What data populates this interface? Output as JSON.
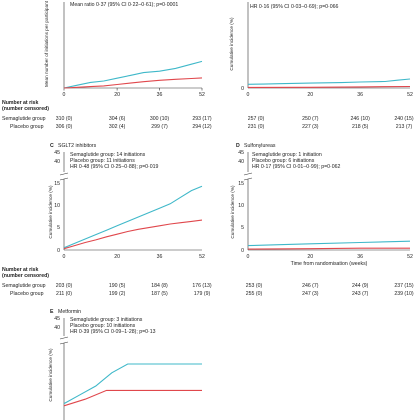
{
  "colors": {
    "semaglutide": "#3fb8c9",
    "placebo": "#e0474c",
    "axis": "#333333"
  },
  "shared": {
    "number_at_risk": "Number at risk",
    "number_censored": "(number censored)",
    "sema_group": "Semaglutide group",
    "placebo_group": "Placebo group",
    "cumulative_incidence_label": "Cumulative incidence (%)"
  },
  "panels": {
    "A": {
      "annotation": "Mean ratio 0·37 (95% CI 0·22–0·61); p=0·0001",
      "ylabel": "Mean number of initiations per participant",
      "xticks": [
        "0",
        "20",
        "36",
        "52"
      ],
      "risk_sema": [
        "310 (0)",
        "304 (6)",
        "300 (10)",
        "293 (17)"
      ],
      "risk_placebo": [
        "306 (0)",
        "302 (4)",
        "299 (7)",
        "294 (12)"
      ]
    },
    "B": {
      "hr": "HR 0·16 (95% CI 0·03–0·69); p=0·066",
      "yticks": [
        "0"
      ],
      "xticks": [
        "0",
        "20",
        "36",
        "52"
      ],
      "risk_sema": [
        "257 (0)",
        "250 (7)",
        "246 (10)",
        "240 (15)"
      ],
      "risk_placebo": [
        "231 (0)",
        "227 (3)",
        "218 (5)",
        "213 (7)"
      ]
    },
    "C": {
      "title": "SGLT2 inhibitors",
      "letter": "C",
      "sema_line": "Semaglutide group: 14 initiations",
      "placebo_line": "Placebo group: 11 initiations",
      "hr": "HR 0·48 (95% CI 0·25–0·88); p=0·019",
      "yticks": [
        "0",
        "5",
        "10",
        "15",
        "40",
        "45"
      ],
      "xticks": [
        "0",
        "20",
        "36",
        "52"
      ],
      "risk_sema": [
        "203 (0)",
        "190 (5)",
        "184 (8)",
        "176 (13)"
      ],
      "risk_placebo": [
        "211 (0)",
        "199 (2)",
        "187 (5)",
        "179 (9)"
      ]
    },
    "D": {
      "title": "Sulfonylureas",
      "letter": "D",
      "sema_line": "Semaglutide group: 1 initiation",
      "placebo_line": "Placebo group: 6 initiations",
      "hr": "HR 0·17 (95% CI 0·01–0·99); p=0·062",
      "yticks": [
        "0",
        "5",
        "10",
        "15",
        "40",
        "45"
      ],
      "xticks": [
        "0",
        "20",
        "36",
        "52"
      ],
      "xlabel": "Time from randomisation (weeks)",
      "risk_sema": [
        "253 (0)",
        "246 (7)",
        "244 (9)",
        "237 (15)"
      ],
      "risk_placebo": [
        "255 (0)",
        "247 (3)",
        "243 (7)",
        "239 (10)"
      ]
    },
    "E": {
      "title": "Metformin",
      "letter": "E",
      "sema_line": "Semaglutide group: 3 initiations",
      "placebo_line": "Placebo group: 10 initiations",
      "hr": "HR 0·39 (95% CI 0·09–1·28); p=0·13",
      "yticks": [
        "40",
        "45"
      ]
    }
  },
  "chart_data": [
    {
      "panel": "A",
      "type": "line",
      "ylabel": "Mean number of initiations per participant",
      "xlim": [
        0,
        52
      ],
      "ylim": [
        0,
        0.6
      ],
      "series": [
        {
          "name": "Semaglutide group",
          "x": [
            0,
            5,
            10,
            15,
            20,
            25,
            30,
            36,
            42,
            48,
            52
          ],
          "y": [
            0.0,
            0.02,
            0.04,
            0.05,
            0.07,
            0.09,
            0.11,
            0.12,
            0.14,
            0.17,
            0.19
          ]
        },
        {
          "name": "Placebo group",
          "x": [
            0,
            5,
            10,
            15,
            20,
            25,
            30,
            36,
            42,
            48,
            52
          ],
          "y": [
            0.0,
            0.005,
            0.01,
            0.015,
            0.025,
            0.035,
            0.045,
            0.055,
            0.062,
            0.068,
            0.072
          ]
        }
      ]
    },
    {
      "panel": "B",
      "type": "line",
      "ylabel": "Cumulative incidence (%)",
      "xlim": [
        0,
        52
      ],
      "ylim": [
        0,
        45
      ],
      "series": [
        {
          "name": "Semaglutide group",
          "x": [
            0,
            5,
            10,
            20,
            30,
            36,
            44,
            48,
            52
          ],
          "y": [
            2.0,
            2.1,
            2.3,
            2.6,
            2.9,
            3.2,
            3.5,
            4.2,
            4.8
          ]
        },
        {
          "name": "Placebo group",
          "x": [
            0,
            20,
            36,
            52
          ],
          "y": [
            0.3,
            0.4,
            0.6,
            0.8
          ]
        }
      ]
    },
    {
      "panel": "C",
      "type": "line",
      "title": "SGLT2 inhibitors",
      "ylabel": "Cumulative incidence (%)",
      "xlim": [
        0,
        52
      ],
      "ylim": [
        0,
        45
      ],
      "series": [
        {
          "name": "Semaglutide group",
          "x": [
            0,
            4,
            8,
            12,
            16,
            20,
            24,
            28,
            32,
            36,
            40,
            44,
            48,
            52
          ],
          "y": [
            0.5,
            1.5,
            2.5,
            3.5,
            4.5,
            5.5,
            6.5,
            7.5,
            8.5,
            9.5,
            10.5,
            12.0,
            13.5,
            14.5
          ]
        },
        {
          "name": "Placebo group",
          "x": [
            0,
            4,
            8,
            12,
            16,
            20,
            24,
            28,
            32,
            36,
            40,
            44,
            48,
            52
          ],
          "y": [
            0.3,
            1.0,
            1.7,
            2.3,
            3.0,
            3.6,
            4.2,
            4.7,
            5.1,
            5.5,
            5.9,
            6.2,
            6.5,
            6.8
          ]
        }
      ]
    },
    {
      "panel": "D",
      "type": "line",
      "title": "Sulfonylureas",
      "ylabel": "Cumulative incidence (%)",
      "xlabel": "Time from randomisation (weeks)",
      "xlim": [
        0,
        52
      ],
      "ylim": [
        0,
        45
      ],
      "series": [
        {
          "name": "Semaglutide group",
          "x": [
            0,
            10,
            20,
            36,
            52
          ],
          "y": [
            1.0,
            1.2,
            1.4,
            1.7,
            2.0
          ]
        },
        {
          "name": "Placebo group",
          "x": [
            0,
            20,
            36,
            52
          ],
          "y": [
            0.2,
            0.3,
            0.4,
            0.4
          ]
        }
      ]
    },
    {
      "panel": "E",
      "type": "line",
      "title": "Metformin",
      "ylabel": "Cumulative incidence (%)",
      "xlim": [
        0,
        52
      ],
      "ylim": [
        0,
        45
      ],
      "series": [
        {
          "name": "Semaglutide group",
          "x": [
            0,
            6,
            12,
            18,
            24,
            52
          ],
          "y": [
            1.0,
            3.0,
            5.0,
            8.0,
            10.0,
            10.0
          ]
        },
        {
          "name": "Placebo group",
          "x": [
            0,
            8,
            16,
            52
          ],
          "y": [
            0.5,
            2.0,
            4.0,
            4.0
          ]
        }
      ]
    }
  ]
}
